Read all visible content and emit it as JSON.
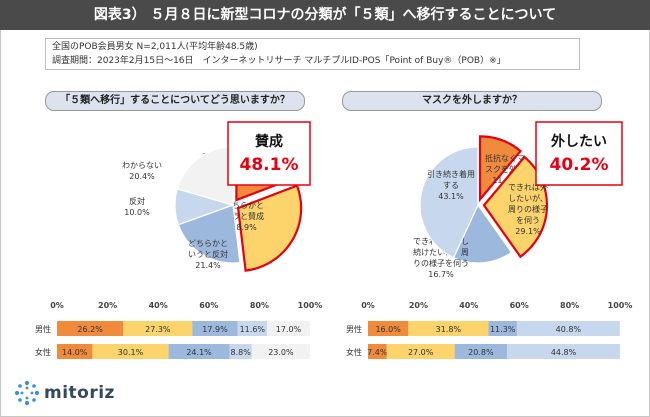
{
  "title": "図表3） ５月８日に新型コロナの分類が「５類」へ移行することについて",
  "meta": {
    "line1": "全国のPOB会員男女 N=2,011人(平均年齢48.5歳)",
    "line2": "調査期間：2023年2月15日～16日　インターネットリサーチ マルチプルID-POS「Point of Buy®（POB）※」"
  },
  "colors": {
    "agree": "#ef8b3a",
    "somewhat_agree": "#fdd36b",
    "somewhat_disagree": "#9db8dd",
    "disagree": "#c7d8ee",
    "unknown": "#f2f2f2",
    "highlight": "#e60012"
  },
  "left": {
    "question": "「５類へ移行」することについてどう思いますか？",
    "callout_label": "賛成",
    "callout_value": "48.1%"
  },
  "right": {
    "question": "マスクを外しますか？",
    "callout_label": "外したい",
    "callout_value": "40.2%"
  },
  "bar_axis": [
    "0%",
    "20%",
    "40%",
    "60%",
    "80%",
    "100%"
  ],
  "logo": "mitoriz",
  "chart_data": [
    {
      "type": "pie",
      "title": "「５類へ移行」することについてどう思いますか？",
      "slices": [
        {
          "label": "賛成",
          "value": 19.2,
          "color": "#ef8b3a",
          "highlight": true
        },
        {
          "label": "どちらかと いうと賛成",
          "value": 28.9,
          "color": "#fdd36b",
          "highlight": true
        },
        {
          "label": "どちらかと いうと反対",
          "value": 21.4,
          "color": "#9db8dd"
        },
        {
          "label": "反対",
          "value": 10.0,
          "color": "#c7d8ee"
        },
        {
          "label": "わからない",
          "value": 20.4,
          "color": "#f2f2f2"
        }
      ]
    },
    {
      "type": "pie",
      "title": "マスクを外しますか？",
      "slices": [
        {
          "label": "抵抗なくマスクを外す",
          "value": 11.1,
          "color": "#ef8b3a",
          "highlight": true
        },
        {
          "label": "できれば外したいが、周りの様子を伺う",
          "value": 29.1,
          "color": "#fdd36b",
          "highlight": true
        },
        {
          "label": "できれば着用し続けたいが、周りの様子を伺う",
          "value": 16.7,
          "color": "#9db8dd"
        },
        {
          "label": "引き続き着用する",
          "value": 43.1,
          "color": "#c7d8ee"
        }
      ]
    },
    {
      "type": "bar",
      "orientation": "horizontal",
      "stacked": true,
      "categories": [
        "男性",
        "女性"
      ],
      "xlim": [
        0,
        100
      ],
      "series": [
        {
          "name": "賛成",
          "values": [
            26.2,
            14.0
          ],
          "color": "#ef8b3a"
        },
        {
          "name": "どちらかと いうと賛成",
          "values": [
            27.3,
            30.1
          ],
          "color": "#fdd36b"
        },
        {
          "name": "どちらかと いうと反対",
          "values": [
            17.9,
            24.1
          ],
          "color": "#9db8dd"
        },
        {
          "name": "反対",
          "values": [
            11.6,
            8.8
          ],
          "color": "#c7d8ee"
        },
        {
          "name": "わからない",
          "values": [
            17.0,
            23.0
          ],
          "color": "#f2f2f2"
        }
      ]
    },
    {
      "type": "bar",
      "orientation": "horizontal",
      "stacked": true,
      "categories": [
        "男性",
        "女性"
      ],
      "xlim": [
        0,
        100
      ],
      "series": [
        {
          "name": "抵抗なくマスクを外す",
          "values": [
            16.0,
            7.4
          ],
          "color": "#ef8b3a"
        },
        {
          "name": "できれば外したいが、周りの様子を伺う",
          "values": [
            31.8,
            27.0
          ],
          "color": "#fdd36b"
        },
        {
          "name": "できれば着用し続けたいが、周りの様子を伺う",
          "values": [
            11.3,
            20.8
          ],
          "color": "#9db8dd"
        },
        {
          "name": "引き続き着用する",
          "values": [
            40.8,
            44.8
          ],
          "color": "#c7d8ee"
        }
      ]
    }
  ]
}
